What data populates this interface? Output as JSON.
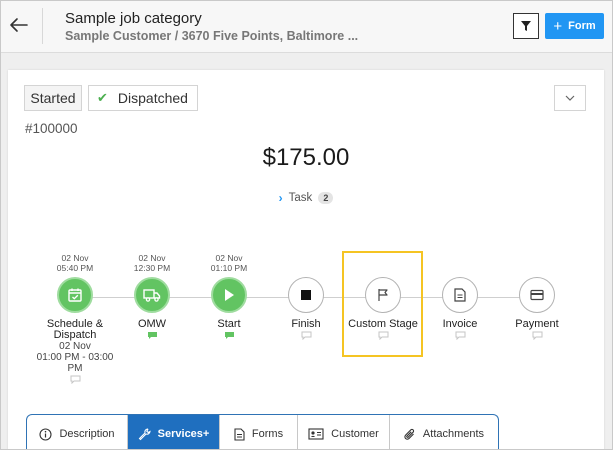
{
  "header": {
    "title": "Sample job category",
    "subtitle": "Sample Customer / 3670 Five Points, Baltimore ...",
    "form_label": "Form",
    "back_icon": "arrow-left-icon",
    "filter_icon": "filter-icon"
  },
  "job": {
    "statuses": [
      "Started",
      "Dispatched"
    ],
    "id": "#100000",
    "amount": "$175.00",
    "task_label": "Task",
    "task_count": "2"
  },
  "stages": [
    {
      "label": "Schedule &",
      "label2": "Dispatch",
      "date": "02 Nov",
      "time": "05:40 PM",
      "sub": "02 Nov",
      "sub2": "01:00 PM - 03:00 PM",
      "state": "done",
      "icon": "calendar-check-icon"
    },
    {
      "label": "OMW",
      "date": "02 Nov",
      "time": "12:30 PM",
      "state": "done",
      "icon": "truck-icon"
    },
    {
      "label": "Start",
      "date": "02 Nov",
      "time": "01:10 PM",
      "state": "done",
      "icon": "play-icon"
    },
    {
      "label": "Finish",
      "state": "pending",
      "icon": "stop-icon"
    },
    {
      "label": "Custom Stage",
      "state": "pending",
      "icon": "flag-icon",
      "highlighted": true
    },
    {
      "label": "Invoice",
      "state": "pending",
      "icon": "document-icon"
    },
    {
      "label": "Payment",
      "state": "pending",
      "icon": "credit-card-icon"
    }
  ],
  "tabs": [
    {
      "label": "Description",
      "icon": "info-circle-icon",
      "active": false
    },
    {
      "label": "Services+",
      "icon": "wrench-icon",
      "active": true
    },
    {
      "label": "Forms",
      "icon": "document-icon",
      "active": false
    },
    {
      "label": "Customer",
      "icon": "contact-card-icon",
      "active": false
    },
    {
      "label": "Attachments",
      "icon": "paperclip-icon",
      "active": false
    }
  ],
  "colors": {
    "accent": "#2196f3",
    "done": "#62c462",
    "highlight": "#f5c423",
    "active_tab": "#1f6fbf"
  }
}
